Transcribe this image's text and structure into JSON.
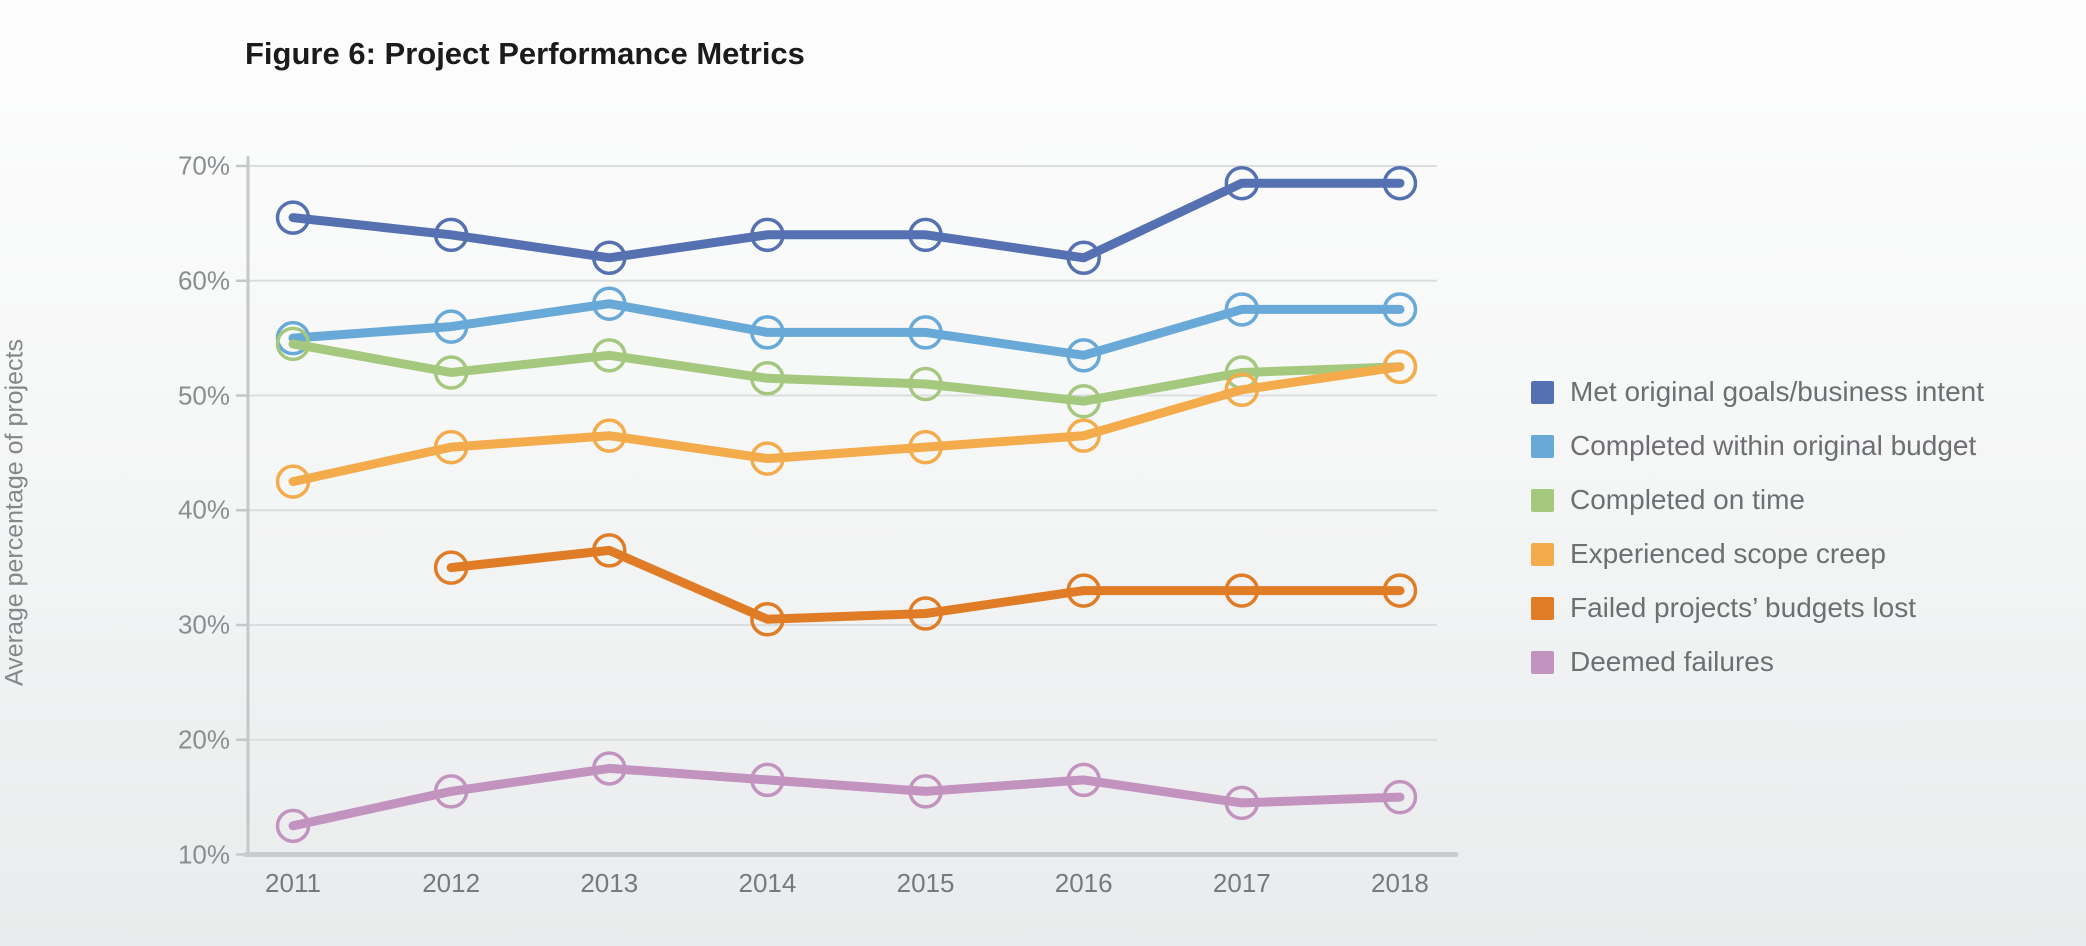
{
  "title": "Figure 6: Project Performance Metrics",
  "y_axis": {
    "title": "Average percentage of projects",
    "tick_labels": [
      "70%",
      "60%",
      "50%",
      "40%",
      "30%",
      "20%",
      "10%"
    ],
    "tick_values": [
      70,
      60,
      50,
      40,
      30,
      20,
      10
    ]
  },
  "x_axis": {
    "years": [
      "2011",
      "2012",
      "2013",
      "2014",
      "2015",
      "2016",
      "2017",
      "2018"
    ]
  },
  "colors": {
    "grid": "#dcddde",
    "axis_line": "#c5c7c8",
    "bottom_axis": "#c9cbcc",
    "title_text": "#1b1b1b",
    "axis_text": "#8b8d90",
    "legend_text": "#6d6f72"
  },
  "chart_data": {
    "type": "line",
    "title": "Figure 6: Project Performance Metrics",
    "ylabel": "Average percentage of projects",
    "ylim": [
      10,
      70
    ],
    "ytick_step": 10,
    "grid": true,
    "legend_position": "right",
    "x": [
      2011,
      2012,
      2013,
      2014,
      2015,
      2016,
      2017,
      2018
    ],
    "series": [
      {
        "name": "Met original goals/business intent",
        "color": "#5571b2",
        "values": [
          65.5,
          64,
          62,
          64,
          64,
          62,
          68.5,
          68.5
        ]
      },
      {
        "name": "Completed within original budget",
        "color": "#68a9d8",
        "values": [
          55,
          56,
          58,
          55.5,
          55.5,
          53.5,
          57.5,
          57.5
        ]
      },
      {
        "name": "Completed on time",
        "color": "#a5c87f",
        "values": [
          54.5,
          52,
          53.5,
          51.5,
          51,
          49.5,
          52,
          52.5
        ]
      },
      {
        "name": "Experienced scope creep",
        "color": "#f4ab4b",
        "values": [
          42.5,
          45.5,
          46.5,
          44.5,
          45.5,
          46.5,
          50.5,
          52.5
        ]
      },
      {
        "name": "Failed projects’ budgets lost",
        "color": "#e07c26",
        "values": [
          null,
          35,
          36.5,
          30.5,
          31,
          33,
          33,
          33
        ]
      },
      {
        "name": "Deemed failures",
        "color": "#c393c0",
        "values": [
          12.5,
          15.5,
          17.5,
          16.5,
          15.5,
          16.5,
          14.5,
          15
        ]
      }
    ]
  }
}
